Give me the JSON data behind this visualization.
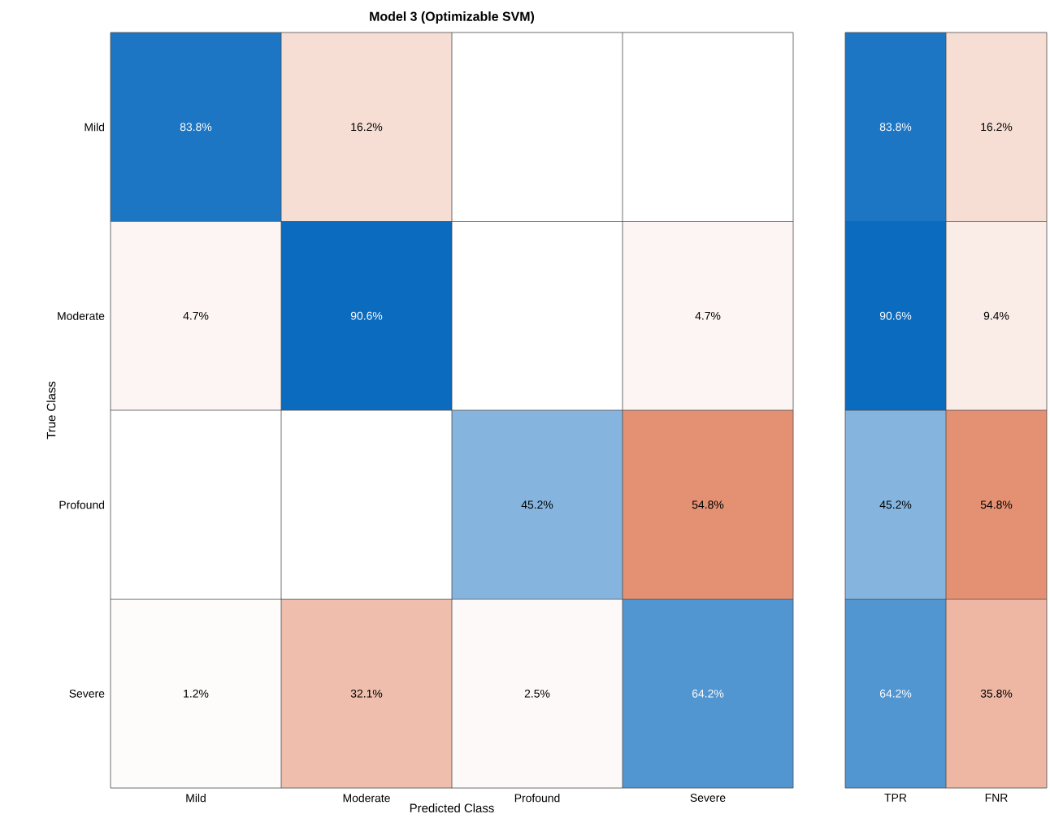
{
  "chart_data": [
    {
      "type": "heatmap",
      "title": "Model 3 (Optimizable SVM)",
      "xlabel": "Predicted Class",
      "ylabel": "True Class",
      "categories": [
        "Mild",
        "Moderate",
        "Profound",
        "Severe"
      ],
      "y_categories": [
        "Mild",
        "Moderate",
        "Profound",
        "Severe"
      ],
      "cells": [
        [
          83.8,
          16.2,
          null,
          null
        ],
        [
          4.7,
          90.6,
          null,
          4.7
        ],
        [
          null,
          null,
          45.2,
          54.8
        ],
        [
          1.2,
          32.1,
          2.5,
          64.2
        ]
      ],
      "cell_labels": [
        [
          "83.8%",
          "16.2%",
          null,
          null
        ],
        [
          "4.7%",
          "90.6%",
          null,
          "4.7%"
        ],
        [
          null,
          null,
          "45.2%",
          "54.8%"
        ],
        [
          "1.2%",
          "32.1%",
          "2.5%",
          "64.2%"
        ]
      ],
      "colors": [
        [
          "#0b6bbf",
          "#d44918",
          null,
          null
        ],
        [
          "#d44918",
          "#0b6bbf",
          null,
          "#d44918"
        ],
        [
          null,
          null,
          "#0b6bbf",
          "#d44918"
        ],
        [
          "#d44918",
          "#d44918",
          "#d44918",
          "#0b6bbf"
        ]
      ]
    },
    {
      "type": "heatmap",
      "categories": [
        "TPR",
        "FNR"
      ],
      "y_categories": [
        null,
        null,
        null,
        null
      ],
      "tick_labels": "x",
      "cells": [
        [
          83.8,
          16.2
        ],
        [
          90.6,
          9.4
        ],
        [
          45.2,
          54.8
        ],
        [
          64.2,
          35.8
        ]
      ],
      "cell_labels": [
        [
          "83.8%",
          "16.2%"
        ],
        [
          "90.6%",
          "9.4%"
        ],
        [
          "45.2%",
          "54.8%"
        ],
        [
          "64.2%",
          "35.8%"
        ]
      ],
      "colors": [
        [
          "#0b6bbf",
          "#d44918"
        ],
        [
          "#0b6bbf",
          "#d44918"
        ],
        [
          "#0b6bbf",
          "#d44918"
        ],
        [
          "#0b6bbf",
          "#d44918"
        ]
      ]
    }
  ]
}
